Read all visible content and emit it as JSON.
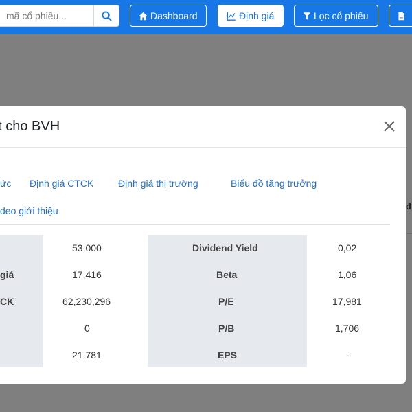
{
  "navbar": {
    "search_placeholder": "mã cổ phiếu...",
    "buttons": [
      {
        "label": "Dashboard",
        "icon": "home-icon"
      },
      {
        "label": "Định giá",
        "icon": "chart-line-icon",
        "active": true
      },
      {
        "label": "Lọc cổ phiếu",
        "icon": "filter-icon"
      },
      {
        "label": "",
        "icon": "document-icon"
      }
    ]
  },
  "modal": {
    "title": "ết cho BVH",
    "tabs": [
      "ức",
      "Định giá CTCK",
      "Định giá thị trường",
      "Biểu đồ tăng trưởng",
      "deo giới thiệu"
    ],
    "left_table": {
      "labels": [
        "",
        "giá",
        "CK",
        "",
        ""
      ],
      "values": [
        "53.000",
        "17,416",
        "62,230,296",
        "0",
        "21.781"
      ]
    },
    "right_table": {
      "labels": [
        "Dividend Yield",
        "Beta",
        "P/E",
        "P/B",
        "EPS"
      ],
      "values": [
        "0,02",
        "1,06",
        "17,981",
        "1,706",
        "-"
      ]
    }
  },
  "background": {
    "partial_header_char": "đ"
  }
}
